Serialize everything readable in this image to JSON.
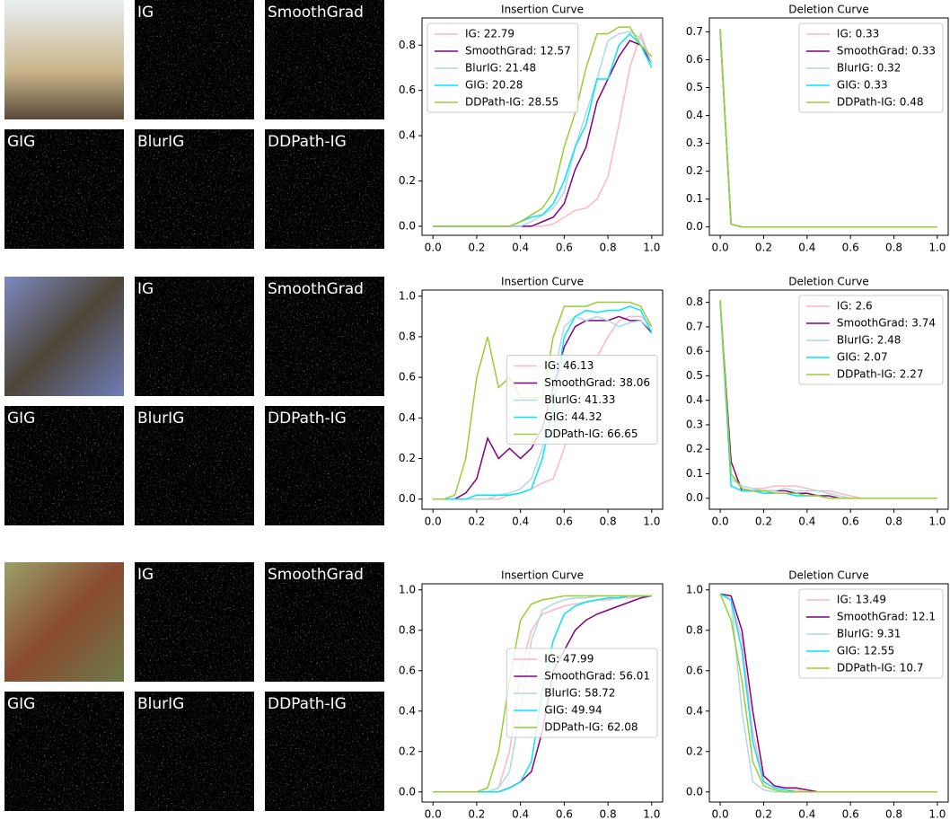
{
  "rows": [
    {
      "image_labels": [
        "IG",
        "SmoothGrad",
        "GIG",
        "BlurIG",
        "DDPath-IG"
      ]
    },
    {
      "image_labels": [
        "IG",
        "SmoothGrad",
        "GIG",
        "BlurIG",
        "DDPath-IG"
      ]
    },
    {
      "image_labels": [
        "IG",
        "SmoothGrad",
        "GIG",
        "BlurIG",
        "DDPath-IG"
      ]
    }
  ],
  "chart_data": [
    {
      "type": "line",
      "title": "Insertion Curve",
      "legend": "upper left",
      "x": [
        0,
        0.05,
        0.1,
        0.15,
        0.2,
        0.25,
        0.3,
        0.35,
        0.4,
        0.45,
        0.5,
        0.55,
        0.6,
        0.65,
        0.7,
        0.75,
        0.8,
        0.85,
        0.9,
        0.95,
        1
      ],
      "xlim": [
        -0.05,
        1.05
      ],
      "xticks": [
        {
          "value": 0,
          "label": "0.0"
        },
        0.2,
        0.4,
        0.6,
        0.8,
        {
          "value": 1,
          "label": "1.0"
        }
      ],
      "ylim": [
        -0.04,
        0.92
      ],
      "yticks": [
        {
          "value": 0,
          "label": "0.0"
        },
        0.2,
        0.4,
        0.6,
        0.8
      ],
      "series": [
        {
          "name": "IG: 22.79",
          "color": "#ffb6c1",
          "values": [
            0,
            0,
            0,
            0,
            0,
            0,
            0,
            0,
            0,
            0,
            0,
            0.01,
            0.04,
            0.07,
            0.08,
            0.12,
            0.22,
            0.45,
            0.7,
            0.85,
            0.72
          ]
        },
        {
          "name": "SmoothGrad: 12.57",
          "color": "#800080",
          "values": [
            0,
            0,
            0,
            0,
            0,
            0,
            0,
            0,
            0,
            0,
            0.02,
            0.04,
            0.1,
            0.25,
            0.35,
            0.55,
            0.65,
            0.75,
            0.82,
            0.8,
            0.72
          ]
        },
        {
          "name": "BlurIG: 21.48",
          "color": "#add8e6",
          "values": [
            0,
            0,
            0,
            0,
            0,
            0,
            0,
            0,
            0,
            0.02,
            0.05,
            0.08,
            0.15,
            0.35,
            0.5,
            0.65,
            0.82,
            0.85,
            0.86,
            0.83,
            0.72
          ]
        },
        {
          "name": "GIG: 20.28",
          "color": "#00e5ff",
          "values": [
            0,
            0,
            0,
            0,
            0,
            0,
            0,
            0,
            0.02,
            0.04,
            0.05,
            0.1,
            0.2,
            0.35,
            0.45,
            0.65,
            0.65,
            0.8,
            0.85,
            0.8,
            0.7
          ]
        },
        {
          "name": "DDPath-IG: 28.55",
          "color": "#9acd32",
          "values": [
            0,
            0,
            0,
            0,
            0,
            0,
            0,
            0,
            0.02,
            0.05,
            0.08,
            0.15,
            0.35,
            0.5,
            0.7,
            0.85,
            0.85,
            0.88,
            0.88,
            0.8,
            0.75
          ]
        }
      ]
    },
    {
      "type": "line",
      "title": "Deletion Curve",
      "legend": "upper right",
      "x": [
        0,
        0.05,
        0.1,
        0.15,
        0.2,
        0.25,
        0.3,
        0.35,
        0.4,
        0.45,
        0.5,
        0.55,
        0.6,
        0.65,
        0.7,
        0.75,
        0.8,
        0.85,
        0.9,
        0.95,
        1
      ],
      "xlim": [
        -0.05,
        1.05
      ],
      "xticks": [
        {
          "value": 0,
          "label": "0.0"
        },
        0.2,
        0.4,
        0.6,
        0.8,
        {
          "value": 1,
          "label": "1.0"
        }
      ],
      "ylim": [
        -0.03,
        0.75
      ],
      "yticks": [
        {
          "value": 0,
          "label": "0.0"
        },
        0.1,
        0.2,
        0.3,
        0.4,
        0.5,
        0.6,
        0.7
      ],
      "series": [
        {
          "name": "IG: 0.33",
          "color": "#ffb6c1",
          "values": [
            0.7,
            0.01,
            0,
            0,
            0,
            0,
            0,
            0,
            0,
            0,
            0,
            0,
            0,
            0,
            0,
            0,
            0,
            0,
            0,
            0,
            0
          ]
        },
        {
          "name": "SmoothGrad: 0.33",
          "color": "#800080",
          "values": [
            0.7,
            0.01,
            0,
            0,
            0,
            0,
            0,
            0,
            0,
            0,
            0,
            0,
            0,
            0,
            0,
            0,
            0,
            0,
            0,
            0,
            0
          ]
        },
        {
          "name": "BlurIG: 0.32",
          "color": "#add8e6",
          "values": [
            0.71,
            0.01,
            0,
            0,
            0,
            0,
            0,
            0,
            0,
            0,
            0,
            0,
            0,
            0,
            0,
            0,
            0,
            0,
            0,
            0,
            0
          ]
        },
        {
          "name": "GIG: 0.33",
          "color": "#00e5ff",
          "values": [
            0.71,
            0.01,
            0,
            0,
            0,
            0,
            0,
            0,
            0,
            0,
            0,
            0,
            0,
            0,
            0,
            0,
            0,
            0,
            0,
            0,
            0
          ]
        },
        {
          "name": "DDPath-IG: 0.48",
          "color": "#9acd32",
          "values": [
            0.71,
            0.01,
            0,
            0,
            0,
            0,
            0,
            0,
            0,
            0,
            0,
            0,
            0,
            0,
            0,
            0,
            0,
            0,
            0,
            0,
            0
          ]
        }
      ]
    },
    {
      "type": "line",
      "title": "Insertion Curve",
      "legend": "center right",
      "x": [
        0,
        0.05,
        0.1,
        0.15,
        0.2,
        0.25,
        0.3,
        0.35,
        0.4,
        0.45,
        0.5,
        0.55,
        0.6,
        0.65,
        0.7,
        0.75,
        0.8,
        0.85,
        0.9,
        0.95,
        1
      ],
      "xlim": [
        -0.05,
        1.05
      ],
      "xticks": [
        {
          "value": 0,
          "label": "0.0"
        },
        0.2,
        0.4,
        0.6,
        0.8,
        {
          "value": 1,
          "label": "1.0"
        }
      ],
      "ylim": [
        -0.05,
        1.03
      ],
      "yticks": [
        {
          "value": 0,
          "label": "0.0"
        },
        0.2,
        0.4,
        0.6,
        0.8,
        {
          "value": 1,
          "label": "1.0"
        }
      ],
      "series": [
        {
          "name": "IG: 46.13",
          "color": "#ffb6c1",
          "values": [
            0,
            0,
            0,
            0,
            0,
            0,
            0,
            0.02,
            0.03,
            0.05,
            0.08,
            0.1,
            0.25,
            0.45,
            0.55,
            0.7,
            0.8,
            0.88,
            0.9,
            0.9,
            0.85
          ]
        },
        {
          "name": "SmoothGrad: 38.06",
          "color": "#800080",
          "values": [
            0,
            0,
            0,
            0.03,
            0.1,
            0.3,
            0.2,
            0.25,
            0.2,
            0.25,
            0.35,
            0.55,
            0.75,
            0.85,
            0.88,
            0.88,
            0.88,
            0.9,
            0.88,
            0.88,
            0.82
          ]
        },
        {
          "name": "BlurIG: 41.33",
          "color": "#add8e6",
          "values": [
            0,
            0,
            0,
            0,
            0,
            0,
            0.02,
            0.03,
            0.05,
            0.1,
            0.25,
            0.6,
            0.85,
            0.9,
            0.88,
            0.9,
            0.88,
            0.85,
            0.87,
            0.88,
            0.83
          ]
        },
        {
          "name": "GIG: 44.32",
          "color": "#00e5ff",
          "values": [
            0,
            0,
            0,
            0,
            0.02,
            0.02,
            0.02,
            0.02,
            0.03,
            0.05,
            0.2,
            0.45,
            0.8,
            0.9,
            0.93,
            0.92,
            0.93,
            0.93,
            0.95,
            0.93,
            0.82
          ]
        },
        {
          "name": "DDPath-IG: 66.65",
          "color": "#9acd32",
          "values": [
            0,
            0,
            0.02,
            0.2,
            0.6,
            0.8,
            0.55,
            0.6,
            0.5,
            0.5,
            0.5,
            0.8,
            0.95,
            0.95,
            0.95,
            0.97,
            0.97,
            0.97,
            0.97,
            0.95,
            0.85
          ]
        }
      ]
    },
    {
      "type": "line",
      "title": "Deletion Curve",
      "legend": "upper right",
      "x": [
        0,
        0.05,
        0.1,
        0.15,
        0.2,
        0.25,
        0.3,
        0.35,
        0.4,
        0.45,
        0.5,
        0.55,
        0.6,
        0.65,
        0.7,
        0.75,
        0.8,
        0.85,
        0.9,
        0.95,
        1
      ],
      "xlim": [
        -0.05,
        1.05
      ],
      "xticks": [
        {
          "value": 0,
          "label": "0.0"
        },
        0.2,
        0.4,
        0.6,
        0.8,
        {
          "value": 1,
          "label": "1.0"
        }
      ],
      "ylim": [
        -0.045,
        0.85
      ],
      "yticks": [
        {
          "value": 0,
          "label": "0.0"
        },
        0.1,
        0.2,
        0.3,
        0.4,
        0.5,
        0.6,
        0.7,
        0.8
      ],
      "series": [
        {
          "name": "IG: 2.6",
          "color": "#ffb6c1",
          "values": [
            0.8,
            0.1,
            0.05,
            0.04,
            0.04,
            0.05,
            0.05,
            0.05,
            0.04,
            0.03,
            0.03,
            0.02,
            0.01,
            0,
            0,
            0,
            0,
            0,
            0,
            0,
            0
          ]
        },
        {
          "name": "SmoothGrad: 3.74",
          "color": "#800080",
          "values": [
            0.8,
            0.15,
            0.03,
            0.03,
            0.03,
            0.03,
            0.03,
            0.02,
            0.02,
            0.01,
            0.01,
            0,
            0,
            0,
            0,
            0,
            0,
            0,
            0,
            0,
            0
          ]
        },
        {
          "name": "BlurIG: 2.48",
          "color": "#add8e6",
          "values": [
            0.8,
            0.08,
            0.05,
            0.04,
            0.03,
            0.03,
            0.04,
            0.03,
            0.03,
            0.03,
            0.02,
            0.01,
            0,
            0,
            0,
            0,
            0,
            0,
            0,
            0,
            0
          ]
        },
        {
          "name": "GIG: 2.07",
          "color": "#00e5ff",
          "values": [
            0.8,
            0.05,
            0.03,
            0.03,
            0.02,
            0.02,
            0.02,
            0.01,
            0.01,
            0.01,
            0,
            0,
            0,
            0,
            0,
            0,
            0,
            0,
            0,
            0,
            0
          ]
        },
        {
          "name": "DDPath-IG: 2.27",
          "color": "#9acd32",
          "values": [
            0.81,
            0.1,
            0.04,
            0.03,
            0.03,
            0.02,
            0.02,
            0.02,
            0.01,
            0.01,
            0,
            0,
            0,
            0,
            0,
            0,
            0,
            0,
            0,
            0,
            0
          ]
        }
      ]
    },
    {
      "type": "line",
      "title": "Insertion Curve",
      "legend": "center right",
      "x": [
        0,
        0.05,
        0.1,
        0.15,
        0.2,
        0.25,
        0.3,
        0.35,
        0.4,
        0.45,
        0.5,
        0.55,
        0.6,
        0.65,
        0.7,
        0.75,
        0.8,
        0.85,
        0.9,
        0.95,
        1
      ],
      "xlim": [
        -0.05,
        1.05
      ],
      "xticks": [
        {
          "value": 0,
          "label": "0.0"
        },
        0.2,
        0.4,
        0.6,
        0.8,
        {
          "value": 1,
          "label": "1.0"
        }
      ],
      "ylim": [
        -0.05,
        1.03
      ],
      "yticks": [
        {
          "value": 0,
          "label": "0.0"
        },
        0.2,
        0.4,
        0.6,
        0.8,
        {
          "value": 1,
          "label": "1.0"
        }
      ],
      "series": [
        {
          "name": "IG: 47.99",
          "color": "#ffb6c1",
          "values": [
            0,
            0,
            0,
            0,
            0,
            0,
            0.02,
            0.2,
            0.6,
            0.8,
            0.88,
            0.9,
            0.92,
            0.93,
            0.94,
            0.95,
            0.95,
            0.96,
            0.96,
            0.97,
            0.97
          ]
        },
        {
          "name": "SmoothGrad: 56.01",
          "color": "#800080",
          "values": [
            0,
            0,
            0,
            0,
            0,
            0,
            0,
            0.02,
            0.05,
            0.1,
            0.3,
            0.6,
            0.7,
            0.8,
            0.85,
            0.88,
            0.9,
            0.92,
            0.94,
            0.96,
            0.97
          ]
        },
        {
          "name": "BlurIG: 58.72",
          "color": "#add8e6",
          "values": [
            0,
            0,
            0,
            0,
            0,
            0,
            0.02,
            0.1,
            0.4,
            0.75,
            0.9,
            0.93,
            0.95,
            0.96,
            0.96,
            0.97,
            0.97,
            0.97,
            0.97,
            0.97,
            0.97
          ]
        },
        {
          "name": "GIG: 49.94",
          "color": "#00e5ff",
          "values": [
            0,
            0,
            0,
            0,
            0,
            0,
            0,
            0.02,
            0.05,
            0.15,
            0.5,
            0.75,
            0.88,
            0.92,
            0.94,
            0.95,
            0.96,
            0.96,
            0.97,
            0.97,
            0.97
          ]
        },
        {
          "name": "DDPath-IG: 62.08",
          "color": "#9acd32",
          "values": [
            0,
            0,
            0,
            0,
            0,
            0.02,
            0.2,
            0.55,
            0.85,
            0.93,
            0.95,
            0.96,
            0.97,
            0.97,
            0.97,
            0.97,
            0.97,
            0.97,
            0.97,
            0.97,
            0.97
          ]
        }
      ]
    },
    {
      "type": "line",
      "title": "Deletion Curve",
      "legend": "upper right",
      "x": [
        0,
        0.05,
        0.1,
        0.15,
        0.2,
        0.25,
        0.3,
        0.35,
        0.4,
        0.45,
        0.5,
        0.55,
        0.6,
        0.65,
        0.7,
        0.75,
        0.8,
        0.85,
        0.9,
        0.95,
        1
      ],
      "xlim": [
        -0.05,
        1.05
      ],
      "xticks": [
        {
          "value": 0,
          "label": "0.0"
        },
        0.2,
        0.4,
        0.6,
        0.8,
        {
          "value": 1,
          "label": "1.0"
        }
      ],
      "ylim": [
        -0.05,
        1.03
      ],
      "yticks": [
        {
          "value": 0,
          "label": "0.0"
        },
        0.2,
        0.4,
        0.6,
        0.8,
        {
          "value": 1,
          "label": "1.0"
        }
      ],
      "series": [
        {
          "name": "IG: 13.49",
          "color": "#ffb6c1",
          "values": [
            0.98,
            0.95,
            0.75,
            0.3,
            0.05,
            0.02,
            0.01,
            0.01,
            0,
            0,
            0,
            0,
            0,
            0,
            0,
            0,
            0,
            0,
            0,
            0,
            0
          ]
        },
        {
          "name": "SmoothGrad: 12.1",
          "color": "#800080",
          "values": [
            0.98,
            0.97,
            0.8,
            0.4,
            0.08,
            0.03,
            0.02,
            0.02,
            0.01,
            0,
            0,
            0,
            0,
            0,
            0,
            0,
            0,
            0,
            0,
            0,
            0
          ]
        },
        {
          "name": "BlurIG: 9.31",
          "color": "#add8e6",
          "values": [
            0.98,
            0.95,
            0.4,
            0.05,
            0.01,
            0,
            0,
            0,
            0,
            0,
            0,
            0,
            0,
            0,
            0,
            0,
            0,
            0,
            0,
            0,
            0
          ]
        },
        {
          "name": "GIG: 12.55",
          "color": "#00e5ff",
          "values": [
            0.98,
            0.95,
            0.7,
            0.25,
            0.05,
            0.02,
            0.01,
            0,
            0,
            0,
            0,
            0,
            0,
            0,
            0,
            0,
            0,
            0,
            0,
            0,
            0
          ]
        },
        {
          "name": "DDPath-IG: 10.7",
          "color": "#9acd32",
          "values": [
            0.98,
            0.85,
            0.55,
            0.15,
            0.03,
            0.01,
            0,
            0,
            0,
            0,
            0,
            0,
            0,
            0,
            0,
            0,
            0,
            0,
            0,
            0,
            0
          ]
        }
      ]
    }
  ]
}
